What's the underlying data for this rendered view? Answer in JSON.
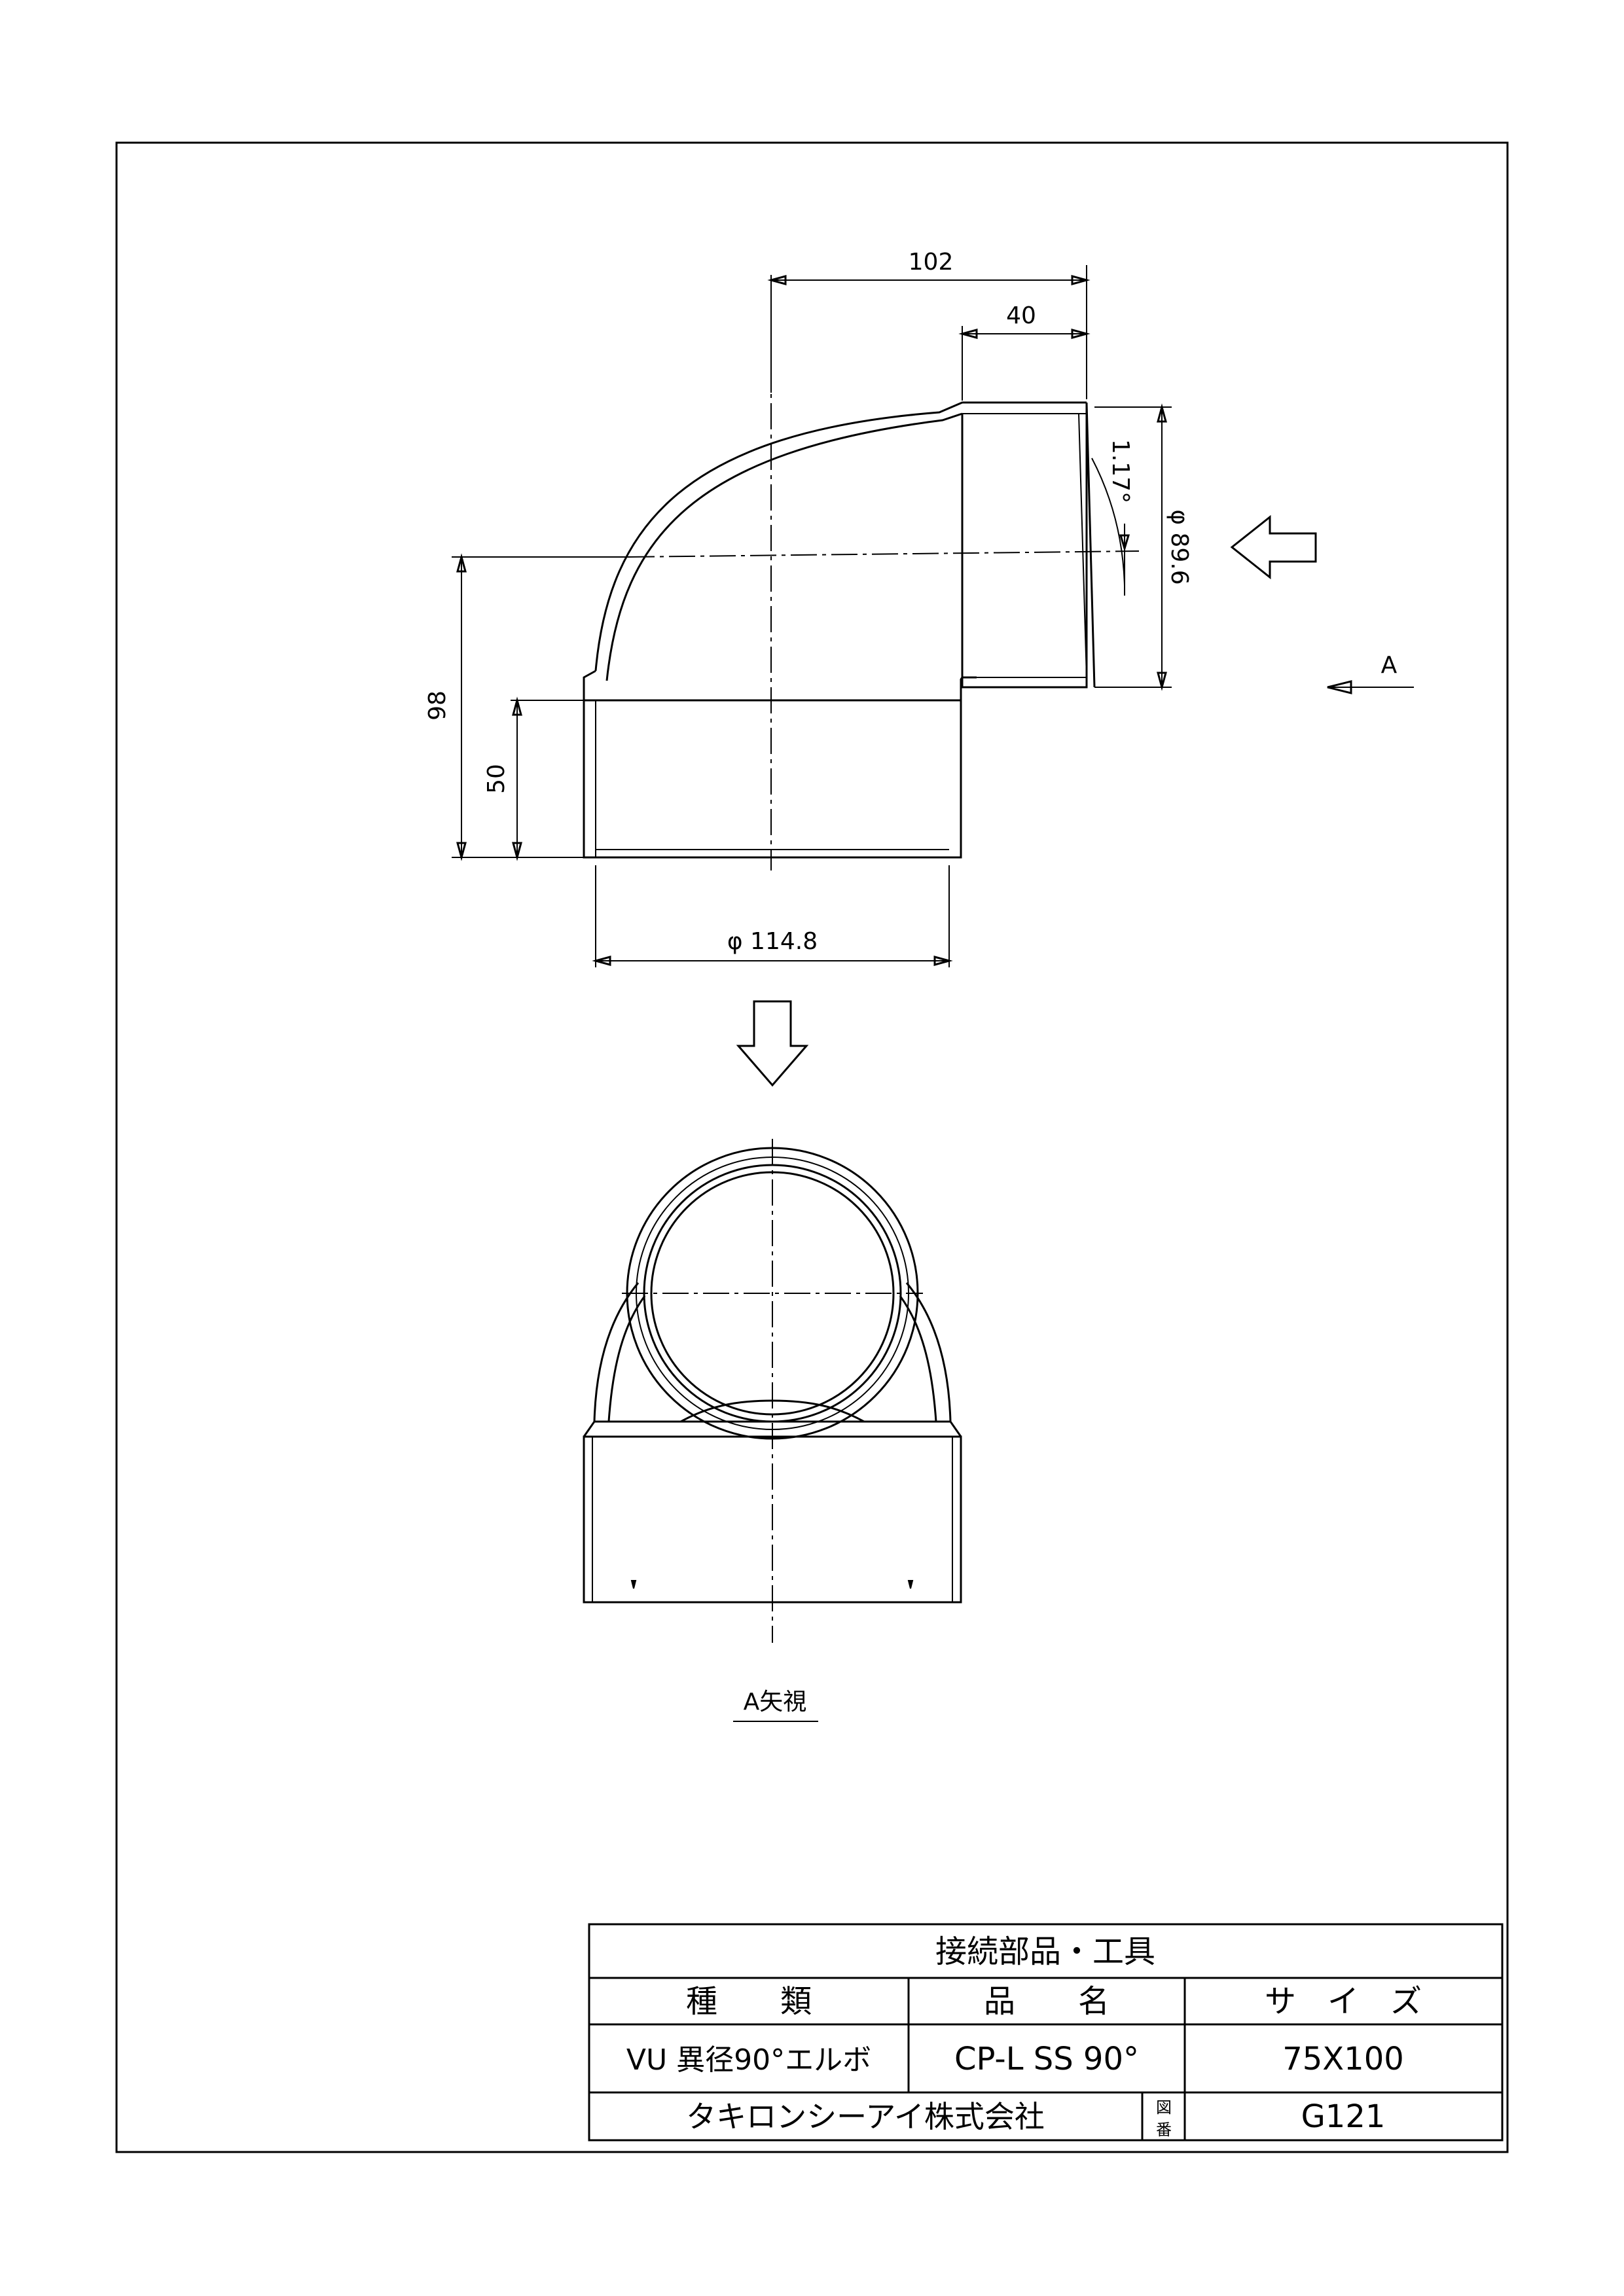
{
  "drawing": {
    "dimensions": {
      "top_width": "102",
      "socket_depth": "40",
      "angle": "1.17°",
      "bore_diameter": "φ 89.6",
      "overall_height": "98",
      "bottom_socket_depth": "50",
      "outer_diameter": "φ 114.8"
    },
    "view_marker": "A",
    "view_caption": "A矢視"
  },
  "title_block": {
    "category": "接続部品・工具",
    "header_type": "種　　類",
    "header_name": "品　　名",
    "header_size": "サ　イ　ズ",
    "type_value": "VU 異径90°エルボ",
    "name_value": "CP-L  SS 90°",
    "size_value": "75X100",
    "company": "タキロンシーアイ株式会社",
    "drawing_no_label_1": "図",
    "drawing_no_label_2": "番",
    "drawing_no": "G121"
  }
}
